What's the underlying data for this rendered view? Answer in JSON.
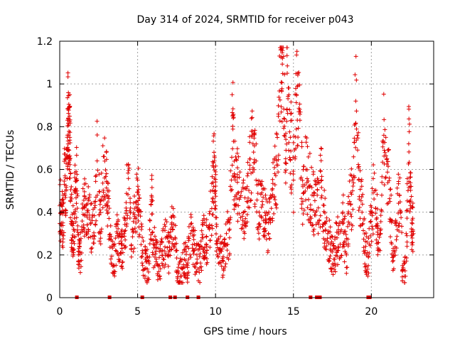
{
  "chart_data": {
    "type": "scatter",
    "title": "Day 314 of 2024, SRMTID for receiver p043",
    "xlabel": "GPS time / hours",
    "ylabel": "SRMTID / TECUs",
    "xlim": [
      0,
      24
    ],
    "ylim": [
      0,
      1.2
    ],
    "grid": true,
    "marker": "plus",
    "color": "#e00000",
    "x_ticks": [
      0,
      5,
      10,
      15,
      20
    ],
    "x_tick_labels": [
      "0",
      "5",
      "10",
      "15",
      "20"
    ],
    "y_ticks": [
      0,
      0.2,
      0.4,
      0.6,
      0.8,
      1.0,
      1.2
    ],
    "y_tick_labels": [
      "0",
      "0.2",
      "0.4",
      "0.6",
      "0.8",
      "1",
      "1.2"
    ],
    "zero_markers_x": [
      1.1,
      3.2,
      5.3,
      7.1,
      7.4,
      8.2,
      8.9,
      16.1,
      16.5,
      16.7,
      19.8,
      19.9
    ],
    "series": [
      {
        "name": "SRMTID",
        "sample_points": [
          [
            0.0,
            0.43
          ],
          [
            0.1,
            0.4
          ],
          [
            0.2,
            0.35
          ],
          [
            0.3,
            0.53
          ],
          [
            0.4,
            0.5
          ],
          [
            0.5,
            0.83
          ],
          [
            0.55,
            0.84
          ],
          [
            0.6,
            0.69
          ],
          [
            0.65,
            0.75
          ],
          [
            0.7,
            0.47
          ],
          [
            0.8,
            0.28
          ],
          [
            0.9,
            0.32
          ],
          [
            1.0,
            0.5
          ],
          [
            1.1,
            0.55
          ],
          [
            1.2,
            0.2
          ],
          [
            1.3,
            0.17
          ],
          [
            1.5,
            0.39
          ],
          [
            1.6,
            0.42
          ],
          [
            1.8,
            0.4
          ],
          [
            2.0,
            0.35
          ],
          [
            2.2,
            0.29
          ],
          [
            2.4,
            0.64
          ],
          [
            2.6,
            0.3
          ],
          [
            2.8,
            0.66
          ],
          [
            3.0,
            0.58
          ],
          [
            3.1,
            0.4
          ],
          [
            3.3,
            0.27
          ],
          [
            3.5,
            0.15
          ],
          [
            3.7,
            0.3
          ],
          [
            3.9,
            0.21
          ],
          [
            4.0,
            0.25
          ],
          [
            4.2,
            0.27
          ],
          [
            4.4,
            0.62
          ],
          [
            4.6,
            0.19
          ],
          [
            4.8,
            0.38
          ],
          [
            5.0,
            0.55
          ],
          [
            5.1,
            0.4
          ],
          [
            5.3,
            0.22
          ],
          [
            5.5,
            0.18
          ],
          [
            5.7,
            0.12
          ],
          [
            5.9,
            0.46
          ],
          [
            6.0,
            0.25
          ],
          [
            6.2,
            0.18
          ],
          [
            6.4,
            0.15
          ],
          [
            6.6,
            0.22
          ],
          [
            6.8,
            0.28
          ],
          [
            7.0,
            0.2
          ],
          [
            7.2,
            0.35
          ],
          [
            7.4,
            0.25
          ],
          [
            7.6,
            0.12
          ],
          [
            7.8,
            0.1
          ],
          [
            8.0,
            0.18
          ],
          [
            8.2,
            0.15
          ],
          [
            8.4,
            0.3
          ],
          [
            8.6,
            0.22
          ],
          [
            8.8,
            0.2
          ],
          [
            9.0,
            0.14
          ],
          [
            9.2,
            0.28
          ],
          [
            9.4,
            0.25
          ],
          [
            9.6,
            0.32
          ],
          [
            9.8,
            0.45
          ],
          [
            9.9,
            0.68
          ],
          [
            10.0,
            0.5
          ],
          [
            10.1,
            0.2
          ],
          [
            10.3,
            0.23
          ],
          [
            10.5,
            0.17
          ],
          [
            10.7,
            0.3
          ],
          [
            10.9,
            0.28
          ],
          [
            11.1,
            0.85
          ],
          [
            11.2,
            0.58
          ],
          [
            11.4,
            0.54
          ],
          [
            11.6,
            0.47
          ],
          [
            11.8,
            0.4
          ],
          [
            12.0,
            0.45
          ],
          [
            12.2,
            0.62
          ],
          [
            12.4,
            0.72
          ],
          [
            12.6,
            0.55
          ],
          [
            12.8,
            0.4
          ],
          [
            13.0,
            0.45
          ],
          [
            13.2,
            0.35
          ],
          [
            13.4,
            0.3
          ],
          [
            13.6,
            0.47
          ],
          [
            13.8,
            0.58
          ],
          [
            14.0,
            0.62
          ],
          [
            14.2,
            1.16
          ],
          [
            14.3,
            1.12
          ],
          [
            14.5,
            0.65
          ],
          [
            14.6,
            1.05
          ],
          [
            14.8,
            0.75
          ],
          [
            15.0,
            0.55
          ],
          [
            15.2,
            0.95
          ],
          [
            15.4,
            0.88
          ],
          [
            15.6,
            0.45
          ],
          [
            15.8,
            0.6
          ],
          [
            16.0,
            0.52
          ],
          [
            16.2,
            0.48
          ],
          [
            16.4,
            0.4
          ],
          [
            16.6,
            0.42
          ],
          [
            16.8,
            0.55
          ],
          [
            17.0,
            0.35
          ],
          [
            17.2,
            0.3
          ],
          [
            17.4,
            0.22
          ],
          [
            17.6,
            0.18
          ],
          [
            17.8,
            0.28
          ],
          [
            18.0,
            0.25
          ],
          [
            18.2,
            0.35
          ],
          [
            18.4,
            0.2
          ],
          [
            18.6,
            0.45
          ],
          [
            18.8,
            0.5
          ],
          [
            19.0,
            0.92
          ],
          [
            19.2,
            0.55
          ],
          [
            19.4,
            0.4
          ],
          [
            19.6,
            0.22
          ],
          [
            19.8,
            0.15
          ],
          [
            20.0,
            0.4
          ],
          [
            20.2,
            0.5
          ],
          [
            20.4,
            0.33
          ],
          [
            20.6,
            0.3
          ],
          [
            20.8,
            0.76
          ],
          [
            21.0,
            0.65
          ],
          [
            21.2,
            0.45
          ],
          [
            21.4,
            0.22
          ],
          [
            21.6,
            0.35
          ],
          [
            21.8,
            0.48
          ],
          [
            22.0,
            0.15
          ],
          [
            22.2,
            0.1
          ],
          [
            22.4,
            0.72
          ],
          [
            22.5,
            0.52
          ],
          [
            22.6,
            0.35
          ],
          [
            22.7,
            0.3
          ]
        ]
      }
    ]
  }
}
